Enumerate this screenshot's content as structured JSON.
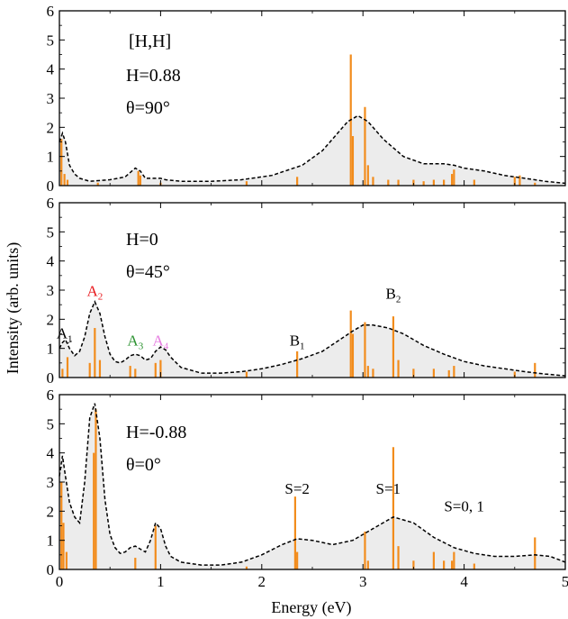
{
  "figure": {
    "xlabel": "Energy (eV)",
    "ylabel": "Intensity (arb. units)",
    "colors": {
      "sticks": "#f28c1c",
      "curve": "#000000",
      "fill": "#ececec",
      "A2": "#e8161a",
      "A3": "#2b9230",
      "A4": "#e67ae0"
    }
  },
  "chart_data": [
    {
      "type": "line",
      "xlim": [
        0,
        5
      ],
      "ylim": [
        0,
        6
      ],
      "yticks": [
        "0",
        "1",
        "2",
        "3",
        "4",
        "5",
        "6"
      ],
      "xticks": [
        "0",
        "1",
        "2",
        "3",
        "4",
        "5"
      ],
      "annotations": [
        "[H,H]",
        "H=0.88",
        "θ=90°"
      ],
      "curve": {
        "x": [
          0,
          0.03,
          0.06,
          0.1,
          0.15,
          0.2,
          0.3,
          0.5,
          0.65,
          0.75,
          0.8,
          0.85,
          0.95,
          1.0,
          1.05,
          1.2,
          1.5,
          1.8,
          2.1,
          2.4,
          2.6,
          2.75,
          2.85,
          2.95,
          3.05,
          3.2,
          3.4,
          3.6,
          3.8,
          3.9,
          4.0,
          4.2,
          4.4,
          4.6,
          4.8,
          5.0
        ],
        "y": [
          1.5,
          1.8,
          1.5,
          0.7,
          0.4,
          0.25,
          0.15,
          0.2,
          0.3,
          0.6,
          0.5,
          0.25,
          0.25,
          0.25,
          0.2,
          0.15,
          0.15,
          0.2,
          0.35,
          0.7,
          1.2,
          1.8,
          2.2,
          2.4,
          2.2,
          1.6,
          1.0,
          0.75,
          0.75,
          0.7,
          0.6,
          0.5,
          0.35,
          0.25,
          0.15,
          0.08
        ]
      },
      "sticks": {
        "x": [
          0.02,
          0.05,
          0.08,
          0.38,
          0.78,
          0.8,
          1.0,
          1.85,
          2.35,
          2.88,
          2.9,
          3.02,
          3.05,
          3.1,
          3.25,
          3.35,
          3.5,
          3.6,
          3.7,
          3.8,
          3.88,
          3.9,
          4.1,
          4.5,
          4.55,
          4.7
        ],
        "y": [
          1.6,
          0.4,
          0.2,
          0.1,
          0.5,
          0.35,
          0.1,
          0.15,
          0.3,
          4.5,
          1.7,
          2.7,
          0.7,
          0.3,
          0.2,
          0.2,
          0.2,
          0.15,
          0.2,
          0.2,
          0.4,
          0.55,
          0.2,
          0.3,
          0.35,
          0.1
        ]
      }
    },
    {
      "type": "line",
      "xlim": [
        0,
        5
      ],
      "ylim": [
        0,
        6
      ],
      "yticks": [
        "0",
        "1",
        "2",
        "3",
        "4",
        "5",
        "6"
      ],
      "xticks": [
        "0",
        "1",
        "2",
        "3",
        "4",
        "5"
      ],
      "annotations": [
        "H=0",
        "θ=45°"
      ],
      "peak_labels": [
        {
          "base": "A",
          "sub": "1",
          "x": 0.05,
          "y": 1.35,
          "color": "#000000"
        },
        {
          "base": "A",
          "sub": "2",
          "x": 0.35,
          "y": 2.8,
          "color": "#e8161a"
        },
        {
          "base": "A",
          "sub": "3",
          "x": 0.75,
          "y": 1.1,
          "color": "#2b9230"
        },
        {
          "base": "A",
          "sub": "4",
          "x": 1.0,
          "y": 1.1,
          "color": "#e67ae0"
        },
        {
          "base": "B",
          "sub": "1",
          "x": 2.35,
          "y": 1.1,
          "color": "#000000"
        },
        {
          "base": "B",
          "sub": "2",
          "x": 3.3,
          "y": 2.7,
          "color": "#000000"
        }
      ],
      "curve": {
        "x": [
          0,
          0.03,
          0.06,
          0.1,
          0.15,
          0.2,
          0.25,
          0.3,
          0.35,
          0.4,
          0.45,
          0.5,
          0.55,
          0.6,
          0.65,
          0.7,
          0.75,
          0.8,
          0.85,
          0.9,
          0.95,
          1.0,
          1.05,
          1.1,
          1.2,
          1.4,
          1.6,
          1.8,
          2.0,
          2.2,
          2.4,
          2.6,
          2.75,
          2.9,
          3.0,
          3.1,
          3.25,
          3.4,
          3.6,
          3.8,
          4.0,
          4.2,
          4.4,
          4.6,
          4.8,
          5.0
        ],
        "y": [
          1.0,
          1.2,
          1.3,
          1.0,
          0.75,
          0.9,
          1.4,
          2.2,
          2.6,
          2.2,
          1.4,
          0.8,
          0.55,
          0.5,
          0.6,
          0.75,
          0.8,
          0.75,
          0.6,
          0.65,
          0.9,
          1.05,
          0.95,
          0.7,
          0.35,
          0.15,
          0.15,
          0.2,
          0.3,
          0.45,
          0.65,
          0.9,
          1.25,
          1.6,
          1.8,
          1.8,
          1.7,
          1.5,
          1.1,
          0.8,
          0.55,
          0.4,
          0.3,
          0.2,
          0.12,
          0.06
        ]
      },
      "sticks": {
        "x": [
          0.03,
          0.08,
          0.3,
          0.35,
          0.4,
          0.7,
          0.75,
          0.95,
          1.0,
          1.85,
          2.35,
          2.88,
          2.9,
          3.02,
          3.05,
          3.1,
          3.3,
          3.35,
          3.5,
          3.7,
          3.85,
          3.9,
          4.5,
          4.7
        ],
        "y": [
          0.3,
          0.7,
          0.5,
          1.7,
          0.6,
          0.4,
          0.3,
          0.5,
          0.6,
          0.2,
          0.9,
          2.3,
          1.5,
          1.9,
          0.4,
          0.3,
          2.1,
          0.6,
          0.3,
          0.3,
          0.25,
          0.4,
          0.2,
          0.5
        ]
      }
    },
    {
      "type": "line",
      "xlim": [
        0,
        5
      ],
      "ylim": [
        0,
        6
      ],
      "yticks": [
        "0",
        "1",
        "2",
        "3",
        "4",
        "5",
        "6"
      ],
      "xticks": [
        "0",
        "1",
        "2",
        "3",
        "4",
        "5"
      ],
      "annotations": [
        "H=-0.88",
        "θ=0°"
      ],
      "peak_labels": [
        {
          "text": "S=2",
          "x": 2.35,
          "y": 2.6
        },
        {
          "text": "S=1",
          "x": 3.25,
          "y": 2.6
        },
        {
          "text": "S=0, 1",
          "x": 4.0,
          "y": 2.0
        }
      ],
      "curve": {
        "x": [
          0,
          0.03,
          0.06,
          0.1,
          0.15,
          0.2,
          0.25,
          0.3,
          0.35,
          0.4,
          0.45,
          0.5,
          0.55,
          0.6,
          0.65,
          0.7,
          0.75,
          0.8,
          0.85,
          0.9,
          0.95,
          1.0,
          1.05,
          1.1,
          1.2,
          1.4,
          1.6,
          1.8,
          2.0,
          2.2,
          2.35,
          2.5,
          2.7,
          2.9,
          3.1,
          3.3,
          3.5,
          3.7,
          3.9,
          4.1,
          4.3,
          4.5,
          4.7,
          4.85,
          5.0
        ],
        "y": [
          3.2,
          3.9,
          3.2,
          2.3,
          1.8,
          1.6,
          3.0,
          5.2,
          5.7,
          4.5,
          2.4,
          1.2,
          0.75,
          0.55,
          0.6,
          0.75,
          0.8,
          0.7,
          0.6,
          1.0,
          1.6,
          1.4,
          0.8,
          0.45,
          0.25,
          0.15,
          0.15,
          0.25,
          0.5,
          0.85,
          1.05,
          1.0,
          0.85,
          1.0,
          1.4,
          1.8,
          1.6,
          1.1,
          0.75,
          0.55,
          0.45,
          0.45,
          0.5,
          0.45,
          0.25
        ]
      },
      "sticks": {
        "x": [
          0.02,
          0.04,
          0.07,
          0.34,
          0.36,
          0.75,
          0.95,
          1.85,
          2.33,
          2.35,
          3.02,
          3.05,
          3.3,
          3.35,
          3.5,
          3.7,
          3.8,
          3.88,
          3.9,
          4.1,
          4.7
        ],
        "y": [
          3.0,
          1.6,
          0.6,
          4.0,
          5.5,
          0.4,
          1.5,
          0.1,
          2.5,
          0.6,
          1.3,
          0.3,
          4.2,
          0.8,
          0.3,
          0.6,
          0.3,
          0.3,
          0.6,
          0.2,
          1.1
        ]
      }
    }
  ]
}
